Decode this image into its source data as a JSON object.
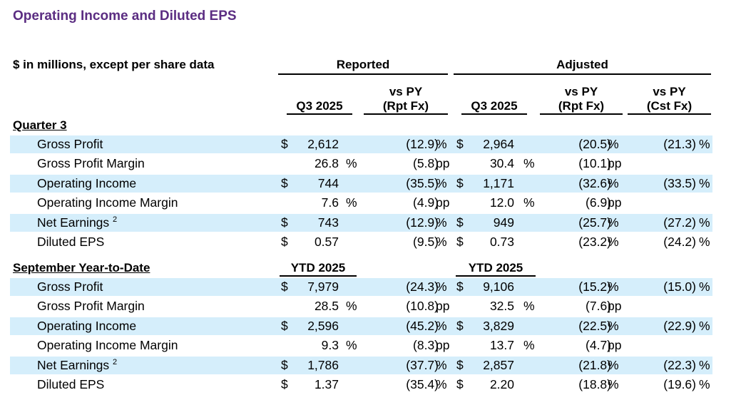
{
  "title": "Operating Income and Diluted EPS",
  "units_label": "$ in millions, except per share data",
  "groups": {
    "reported": "Reported",
    "adjusted": "Adjusted"
  },
  "col_headers": {
    "rep_q3": "Q3 2025",
    "rep_vs_line1": "vs PY",
    "rep_vs_line2": "(Rpt Fx)",
    "adj_q3": "Q3 2025",
    "adj_vs_rpt_line1": "vs PY",
    "adj_vs_rpt_line2": "(Rpt Fx)",
    "adj_vs_cst_line1": "vs PY",
    "adj_vs_cst_line2": "(Cst Fx)"
  },
  "quarter": {
    "label": "Quarter 3",
    "rows": [
      {
        "label": "Gross Profit",
        "sup": "",
        "rep_cur": "$",
        "rep_val": "2,612",
        "rep_unit": "",
        "rep_chg": "(12.9)",
        "rep_chg_unit": "%",
        "adj_cur": "$",
        "adj_val": "2,964",
        "adj_unit": "",
        "adj_chg": "(20.5)",
        "adj_chg_unit": "%",
        "cst_chg": "(21.3)",
        "cst_unit": "%"
      },
      {
        "label": "Gross Profit Margin",
        "sup": "",
        "rep_cur": "",
        "rep_val": "26.8",
        "rep_unit": "%",
        "rep_chg": "(5.8)",
        "rep_chg_unit": "pp",
        "adj_cur": "",
        "adj_val": "30.4",
        "adj_unit": "%",
        "adj_chg": "(10.1)",
        "adj_chg_unit": "pp",
        "cst_chg": "",
        "cst_unit": ""
      },
      {
        "label": "Operating Income",
        "sup": "",
        "rep_cur": "$",
        "rep_val": "744",
        "rep_unit": "",
        "rep_chg": "(35.5)",
        "rep_chg_unit": "%",
        "adj_cur": "$",
        "adj_val": "1,171",
        "adj_unit": "",
        "adj_chg": "(32.6)",
        "adj_chg_unit": "%",
        "cst_chg": "(33.5)",
        "cst_unit": "%"
      },
      {
        "label": "Operating Income Margin",
        "sup": "",
        "rep_cur": "",
        "rep_val": "7.6",
        "rep_unit": "%",
        "rep_chg": "(4.9)",
        "rep_chg_unit": "pp",
        "adj_cur": "",
        "adj_val": "12.0",
        "adj_unit": "%",
        "adj_chg": "(6.9)",
        "adj_chg_unit": "pp",
        "cst_chg": "",
        "cst_unit": ""
      },
      {
        "label": "Net Earnings",
        "sup": "2",
        "rep_cur": "$",
        "rep_val": "743",
        "rep_unit": "",
        "rep_chg": "(12.9)",
        "rep_chg_unit": "%",
        "adj_cur": "$",
        "adj_val": "949",
        "adj_unit": "",
        "adj_chg": "(25.7)",
        "adj_chg_unit": "%",
        "cst_chg": "(27.2)",
        "cst_unit": "%"
      },
      {
        "label": "Diluted EPS",
        "sup": "",
        "rep_cur": "$",
        "rep_val": "0.57",
        "rep_unit": "",
        "rep_chg": "(9.5)",
        "rep_chg_unit": "%",
        "adj_cur": "$",
        "adj_val": "0.73",
        "adj_unit": "",
        "adj_chg": "(23.2)",
        "adj_chg_unit": "%",
        "cst_chg": "(24.2)",
        "cst_unit": "%"
      }
    ]
  },
  "ytd": {
    "label": "September Year-to-Date",
    "rep_col": "YTD 2025",
    "adj_col": "YTD 2025",
    "rows": [
      {
        "label": "Gross Profit",
        "sup": "",
        "rep_cur": "$",
        "rep_val": "7,979",
        "rep_unit": "",
        "rep_chg": "(24.3)",
        "rep_chg_unit": "%",
        "adj_cur": "$",
        "adj_val": "9,106",
        "adj_unit": "",
        "adj_chg": "(15.2)",
        "adj_chg_unit": "%",
        "cst_chg": "(15.0)",
        "cst_unit": "%"
      },
      {
        "label": "Gross Profit Margin",
        "sup": "",
        "rep_cur": "",
        "rep_val": "28.5",
        "rep_unit": "%",
        "rep_chg": "(10.8)",
        "rep_chg_unit": "pp",
        "adj_cur": "",
        "adj_val": "32.5",
        "adj_unit": "%",
        "adj_chg": "(7.6)",
        "adj_chg_unit": "pp",
        "cst_chg": "",
        "cst_unit": ""
      },
      {
        "label": "Operating Income",
        "sup": "",
        "rep_cur": "$",
        "rep_val": "2,596",
        "rep_unit": "",
        "rep_chg": "(45.2)",
        "rep_chg_unit": "%",
        "adj_cur": "$",
        "adj_val": "3,829",
        "adj_unit": "",
        "adj_chg": "(22.5)",
        "adj_chg_unit": "%",
        "cst_chg": "(22.9)",
        "cst_unit": "%"
      },
      {
        "label": "Operating Income Margin",
        "sup": "",
        "rep_cur": "",
        "rep_val": "9.3",
        "rep_unit": "%",
        "rep_chg": "(8.3)",
        "rep_chg_unit": "pp",
        "adj_cur": "",
        "adj_val": "13.7",
        "adj_unit": "%",
        "adj_chg": "(4.7)",
        "adj_chg_unit": "pp",
        "cst_chg": "",
        "cst_unit": ""
      },
      {
        "label": "Net Earnings",
        "sup": "2",
        "rep_cur": "$",
        "rep_val": "1,786",
        "rep_unit": "",
        "rep_chg": "(37.7)",
        "rep_chg_unit": "%",
        "adj_cur": "$",
        "adj_val": "2,857",
        "adj_unit": "",
        "adj_chg": "(21.8)",
        "adj_chg_unit": "%",
        "cst_chg": "(22.3)",
        "cst_unit": "%"
      },
      {
        "label": "Diluted EPS",
        "sup": "",
        "rep_cur": "$",
        "rep_val": "1.37",
        "rep_unit": "",
        "rep_chg": "(35.4)",
        "rep_chg_unit": "%",
        "adj_cur": "$",
        "adj_val": "2.20",
        "adj_unit": "",
        "adj_chg": "(18.8)",
        "adj_chg_unit": "%",
        "cst_chg": "(19.6)",
        "cst_unit": "%"
      }
    ]
  },
  "colors": {
    "title": "#5b2d82",
    "row_shade": "#d5eefb"
  }
}
